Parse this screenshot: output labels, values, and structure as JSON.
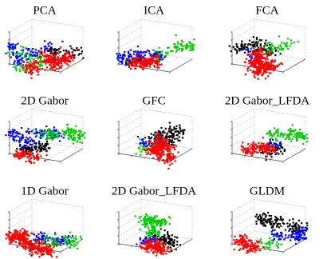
{
  "figure": {
    "cloud_colors": [
      "#ff0000",
      "#0000ff",
      "#00cc00",
      "#000000"
    ],
    "colors": {
      "red": "#ff0000",
      "blue": "#0000ff",
      "green": "#00cc00",
      "black": "#000000"
    }
  },
  "chart_data": [
    {
      "type": "scatter",
      "title": "PCA",
      "clouds": [
        {
          "color": "#00cc00",
          "pts": [
            [
              0.15,
              0.45
            ],
            [
              0.45,
              0.6
            ],
            [
              0.35,
              0.55
            ],
            [
              0.2,
              0.75
            ]
          ],
          "n": 90
        },
        {
          "color": "#0000ff",
          "pts": [
            [
              0.05,
              0.35
            ],
            [
              0.35,
              0.45
            ],
            [
              0.55,
              0.35
            ],
            [
              0.15,
              0.6
            ]
          ],
          "n": 110
        },
        {
          "color": "#000000",
          "pts": [
            [
              0.62,
              0.45
            ],
            [
              0.85,
              0.45
            ]
          ],
          "n": 55
        },
        {
          "color": "#ff0000",
          "pts": [
            [
              0.35,
              0.75
            ],
            [
              0.6,
              0.65
            ],
            [
              0.55,
              0.55
            ],
            [
              0.75,
              0.55
            ]
          ],
          "n": 260
        }
      ]
    },
    {
      "type": "scatter",
      "title": "ICA",
      "clouds": [
        {
          "color": "#00cc00",
          "pts": [
            [
              0.55,
              0.5
            ],
            [
              0.8,
              0.35
            ],
            [
              0.95,
              0.3
            ]
          ],
          "n": 100
        },
        {
          "color": "#000000",
          "pts": [
            [
              0.2,
              0.62
            ],
            [
              0.28,
              0.58
            ]
          ],
          "n": 40
        },
        {
          "color": "#0000ff",
          "pts": [
            [
              0.1,
              0.55
            ],
            [
              0.3,
              0.5
            ],
            [
              0.5,
              0.52
            ]
          ],
          "n": 110
        },
        {
          "color": "#ff0000",
          "pts": [
            [
              0.3,
              0.65
            ],
            [
              0.45,
              0.62
            ]
          ],
          "n": 160
        }
      ]
    },
    {
      "type": "scatter",
      "title": "FCA",
      "clouds": [
        {
          "color": "#000000",
          "pts": [
            [
              0.15,
              0.35
            ],
            [
              0.35,
              0.3
            ],
            [
              0.5,
              0.4
            ]
          ],
          "n": 120
        },
        {
          "color": "#00cc00",
          "pts": [
            [
              0.55,
              0.35
            ],
            [
              0.72,
              0.3
            ]
          ],
          "n": 50
        },
        {
          "color": "#0000ff",
          "pts": [
            [
              0.3,
              0.5
            ]
          ],
          "n": 25
        },
        {
          "color": "#ff0000",
          "pts": [
            [
              0.35,
              0.65
            ],
            [
              0.4,
              0.5
            ],
            [
              0.5,
              0.7
            ],
            [
              0.4,
              0.8
            ]
          ],
          "n": 300
        }
      ]
    },
    {
      "type": "scatter",
      "title": "2D Gabor",
      "clouds": [
        {
          "color": "#0000ff",
          "pts": [
            [
              0.1,
              0.3
            ],
            [
              0.4,
              0.25
            ],
            [
              0.6,
              0.3
            ],
            [
              0.25,
              0.45
            ]
          ],
          "n": 150
        },
        {
          "color": "#00cc00",
          "pts": [
            [
              0.55,
              0.3
            ],
            [
              0.8,
              0.25
            ],
            [
              0.9,
              0.35
            ]
          ],
          "n": 130
        },
        {
          "color": "#000000",
          "pts": [
            [
              0.25,
              0.6
            ],
            [
              0.45,
              0.55
            ]
          ],
          "n": 90
        },
        {
          "color": "#ff0000",
          "pts": [
            [
              0.2,
              0.7
            ],
            [
              0.35,
              0.75
            ]
          ],
          "n": 80
        }
      ]
    },
    {
      "type": "scatter",
      "title": "GFC",
      "clouds": [
        {
          "color": "#00cc00",
          "pts": [
            [
              0.35,
              0.55
            ],
            [
              0.5,
              0.5
            ]
          ],
          "n": 40
        },
        {
          "color": "#0000ff",
          "pts": [
            [
              0.4,
              0.45
            ],
            [
              0.55,
              0.5
            ]
          ],
          "n": 50
        },
        {
          "color": "#000000",
          "pts": [
            [
              0.55,
              0.3
            ],
            [
              0.75,
              0.25
            ],
            [
              0.7,
              0.4
            ]
          ],
          "n": 130
        },
        {
          "color": "#ff0000",
          "pts": [
            [
              0.5,
              0.6
            ],
            [
              0.6,
              0.55
            ],
            [
              0.65,
              0.75
            ],
            [
              0.55,
              0.45
            ]
          ],
          "n": 280
        }
      ]
    },
    {
      "type": "scatter",
      "title": "2D Gabor_LFDA",
      "clouds": [
        {
          "color": "#00cc00",
          "pts": [
            [
              0.6,
              0.3
            ],
            [
              0.8,
              0.3
            ],
            [
              0.9,
              0.35
            ]
          ],
          "n": 110
        },
        {
          "color": "#0000ff",
          "pts": [
            [
              0.55,
              0.55
            ],
            [
              0.62,
              0.5
            ]
          ],
          "n": 30
        },
        {
          "color": "#000000",
          "pts": [
            [
              0.5,
              0.65
            ],
            [
              0.58,
              0.6
            ]
          ],
          "n": 50
        },
        {
          "color": "#ff0000",
          "pts": [
            [
              0.25,
              0.6
            ],
            [
              0.4,
              0.55
            ],
            [
              0.5,
              0.6
            ]
          ],
          "n": 130
        }
      ]
    },
    {
      "type": "scatter",
      "title": "1D Gabor",
      "clouds": [
        {
          "color": "#0000ff",
          "pts": [
            [
              0.45,
              0.55
            ],
            [
              0.7,
              0.6
            ]
          ],
          "n": 90
        },
        {
          "color": "#00cc00",
          "pts": [
            [
              0.6,
              0.65
            ],
            [
              0.85,
              0.6
            ]
          ],
          "n": 70
        },
        {
          "color": "#000000",
          "pts": [
            [
              0.35,
              0.7
            ]
          ],
          "n": 20
        },
        {
          "color": "#ff0000",
          "pts": [
            [
              0.1,
              0.55
            ],
            [
              0.25,
              0.65
            ],
            [
              0.4,
              0.75
            ],
            [
              0.5,
              0.8
            ],
            [
              0.2,
              0.5
            ]
          ],
          "n": 330
        }
      ]
    },
    {
      "type": "scatter",
      "title": "2D Gabor_LFDA",
      "clouds": [
        {
          "color": "#00cc00",
          "pts": [
            [
              0.42,
              0.2
            ],
            [
              0.55,
              0.25
            ],
            [
              0.48,
              0.45
            ]
          ],
          "n": 170
        },
        {
          "color": "#000000",
          "pts": [
            [
              0.6,
              0.55
            ],
            [
              0.7,
              0.65
            ]
          ],
          "n": 80
        },
        {
          "color": "#0000ff",
          "pts": [
            [
              0.4,
              0.6
            ]
          ],
          "n": 40
        },
        {
          "color": "#ff0000",
          "pts": [
            [
              0.45,
              0.7
            ],
            [
              0.55,
              0.75
            ]
          ],
          "n": 150
        }
      ]
    },
    {
      "type": "scatter",
      "title": "GLDM",
      "clouds": [
        {
          "color": "#000000",
          "pts": [
            [
              0.45,
              0.2
            ],
            [
              0.6,
              0.25
            ],
            [
              0.85,
              0.35
            ]
          ],
          "n": 130
        },
        {
          "color": "#0000ff",
          "pts": [
            [
              0.65,
              0.5
            ],
            [
              0.85,
              0.55
            ],
            [
              0.95,
              0.45
            ]
          ],
          "n": 110
        },
        {
          "color": "#00cc00",
          "pts": [
            [
              0.5,
              0.65
            ],
            [
              0.55,
              0.7
            ]
          ],
          "n": 30
        },
        {
          "color": "#ff0000",
          "pts": [
            [
              0.15,
              0.6
            ],
            [
              0.25,
              0.7
            ],
            [
              0.3,
              0.75
            ]
          ],
          "n": 120
        }
      ]
    }
  ]
}
